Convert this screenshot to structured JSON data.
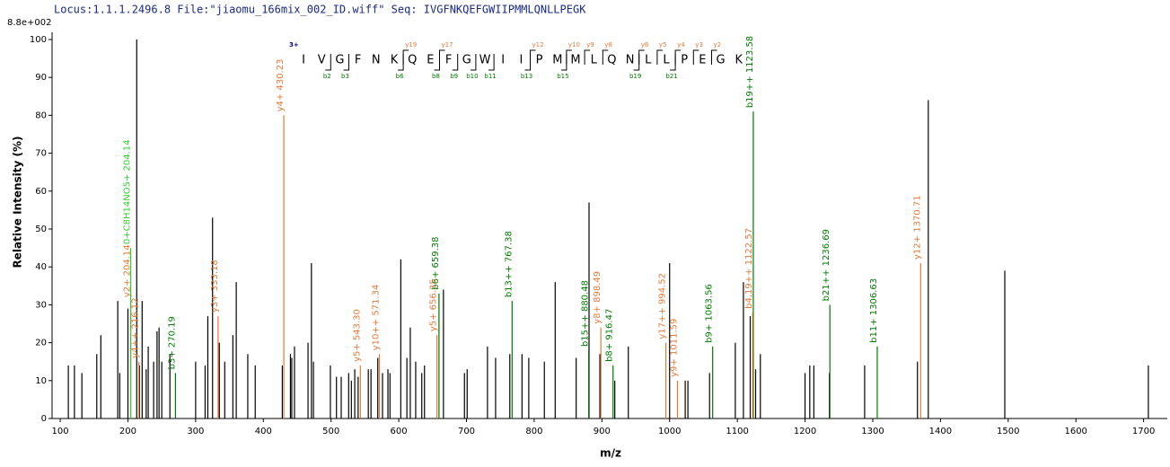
{
  "chart_data": {
    "type": "spectrum",
    "title": "Locus:1.1.1.2496.8 File:\"jiaomu_166mix_002_ID.wiff\"   Seq: IVGFNKQEFGWIIPMMLQNLLPEGK",
    "scale_label": "8.8e+002",
    "xlabel": "m/z",
    "ylabel": "Relative  Intensity (%)",
    "xlim": [
      88,
      1735
    ],
    "ylim": [
      0,
      100
    ],
    "xticks": [
      100,
      200,
      300,
      400,
      500,
      600,
      700,
      800,
      900,
      1000,
      1100,
      1200,
      1300,
      1400,
      1500,
      1600,
      1700
    ],
    "yticks": [
      0,
      10,
      20,
      30,
      40,
      50,
      60,
      70,
      80,
      90,
      100
    ],
    "series": [
      {
        "color": "#000000",
        "x": [
          112,
          121,
          132,
          154,
          160,
          185,
          188,
          200,
          213,
          217,
          221,
          227,
          230,
          238,
          243,
          246,
          250,
          262,
          300,
          314,
          318,
          325,
          335,
          343,
          355,
          360,
          377,
          388,
          428,
          440,
          442,
          446,
          466,
          471,
          474,
          499,
          508,
          515,
          526,
          530,
          535,
          540,
          555,
          559,
          569,
          576,
          584,
          587,
          603,
          612,
          617,
          625,
          634,
          638,
          666,
          697,
          701,
          731,
          743,
          764,
          782,
          792,
          815,
          831,
          862,
          881,
          897,
          919,
          939,
          1000,
          1023,
          1027,
          1059,
          1097,
          1109,
          1119,
          1127,
          1134,
          1200,
          1207,
          1213,
          1236,
          1288,
          1366,
          1382,
          1495,
          1707
        ],
        "values": [
          14,
          14,
          12,
          17,
          22,
          31,
          12,
          29,
          100,
          14,
          31,
          13,
          19,
          15,
          23,
          24,
          15,
          17,
          15,
          14,
          27,
          53,
          20,
          15,
          22,
          36,
          17,
          14,
          14,
          17,
          16,
          19,
          20,
          41,
          15,
          14,
          11,
          11,
          12,
          10,
          13,
          11,
          13,
          13,
          16,
          12,
          13,
          12,
          42,
          16,
          24,
          15,
          12,
          14,
          34,
          12,
          13,
          19,
          16,
          17,
          17,
          16,
          15,
          36,
          16,
          57,
          17,
          10,
          19,
          41,
          10,
          10,
          12,
          20,
          36,
          27,
          13,
          17,
          12,
          14,
          14,
          12,
          14,
          15,
          84,
          39,
          14
        ]
      },
      {
        "color": "#007a00",
        "x": [
          270.19,
          659.38,
          767.38,
          880.48,
          916.47,
          1063.56,
          1123.58,
          1236.69,
          1306.63
        ],
        "values": [
          12,
          33,
          31,
          18,
          14,
          19,
          81,
          30,
          19
        ],
        "labels": [
          "b3+ 270.19",
          "b6+ 659.38",
          "b13++ 767.38",
          "b15++ 880.48",
          "b8+ 916.47",
          "b9+ 1063.56",
          "b19++ 1123.58",
          "b21++ 1236.69",
          "b11+ 1306.63"
        ]
      },
      {
        "color": "#e07a3a",
        "x": [
          204.14,
          216.12,
          333.18,
          430.23,
          543.3,
          571.34,
          656.35,
          898.49,
          994.52,
          1011.59,
          1122.57,
          1370.71
        ],
        "values": [
          31,
          15,
          27,
          80,
          14,
          17,
          22,
          24,
          20,
          10,
          28,
          41
        ],
        "labels": [
          "y2+ 204.14",
          "y4++ 216.12",
          "y3+ 333.18",
          "y4+ 430.23",
          "y5+ 543.30",
          "y10++ 571.34",
          "y5+ 656.35",
          "y8+ 898.49",
          "y17++ 994.52",
          "y9+ 1011.59",
          "b4,19++ 1122.57",
          "y12+ 1370.71"
        ]
      },
      {
        "color": "#33cc33",
        "x": [
          204.14
        ],
        "values": [
          45
        ],
        "labels": [
          "0+C8H14NO5+ 204.14"
        ]
      }
    ],
    "sequence": {
      "charge": "3+",
      "letters": [
        "I",
        "V",
        "G",
        "F",
        "N",
        "K",
        "Q",
        "E",
        "F",
        "G",
        "W",
        "I",
        "I",
        "P",
        "M",
        "M",
        "L",
        "Q",
        "N",
        "L",
        "L",
        "P",
        "E",
        "G",
        "K"
      ],
      "y_ions": [
        "y19",
        "y17",
        "y12",
        "y10",
        "y9",
        "y8",
        "y6",
        "y5",
        "y4",
        "y3",
        "y2"
      ],
      "b_ions": [
        "b2",
        "b3",
        "b6",
        "b8",
        "b9",
        "b10",
        "b11",
        "b13",
        "b15",
        "b19",
        "b21"
      ]
    }
  }
}
